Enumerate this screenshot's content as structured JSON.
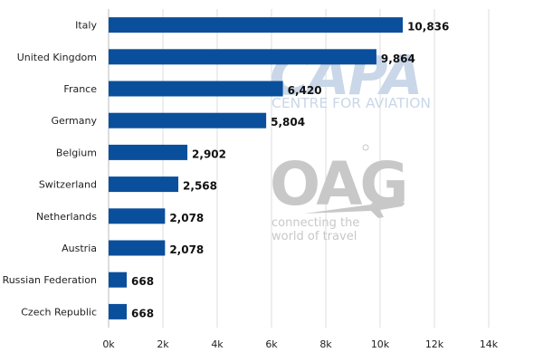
{
  "chart_data": {
    "type": "bar",
    "orientation": "horizontal",
    "categories": [
      "Italy",
      "United Kingdom",
      "France",
      "Germany",
      "Belgium",
      "Switzerland",
      "Netherlands",
      "Austria",
      "Russian Federation",
      "Czech Republic"
    ],
    "values": [
      10836,
      9864,
      6420,
      5804,
      2902,
      2568,
      2078,
      2078,
      668,
      668
    ],
    "value_labels": [
      "10,836",
      "9,864",
      "6,420",
      "5,804",
      "2,902",
      "2,568",
      "2,078",
      "2,078",
      "668",
      "668"
    ],
    "xlim": [
      0,
      14000
    ],
    "x_ticks": [
      0,
      2000,
      4000,
      6000,
      8000,
      10000,
      12000,
      14000
    ],
    "x_tick_labels": [
      "0k",
      "2k",
      "4k",
      "6k",
      "8k",
      "10k",
      "12k",
      "14k"
    ],
    "grid": "vertical",
    "bar_color": "#0a4f9c"
  },
  "watermark": {
    "capa_logo": "CAPA",
    "capa_tagline": "CENTRE FOR AVIATION",
    "oag_logo": "OAG",
    "oag_tagline_line1": "connecting the",
    "oag_tagline_line2": "world of travel"
  }
}
